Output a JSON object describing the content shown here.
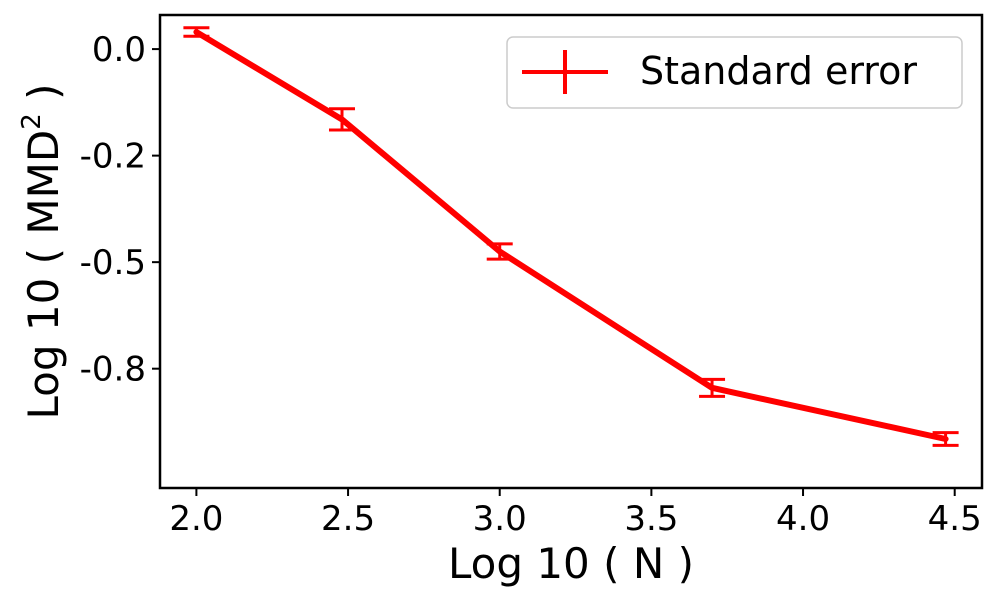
{
  "chart_data": {
    "type": "line",
    "title": "",
    "xlabel": "Log 10 ( N )",
    "ylabel_main": "Log 10 ( MMD",
    "ylabel_sup": "2",
    "ylabel_end": " )",
    "xlim": [
      1.88,
      4.59
    ],
    "ylim": [
      -1.03,
      0.08
    ],
    "x_ticks": [
      2.0,
      2.5,
      3.0,
      3.5,
      4.0,
      4.5
    ],
    "x_tick_labels": [
      "2.0",
      "2.5",
      "3.0",
      "3.5",
      "4.0",
      "4.5"
    ],
    "y_ticks": [
      0.0,
      -0.25,
      -0.5,
      -0.75
    ],
    "y_tick_labels": [
      "0.0",
      "-0.2",
      "-0.5",
      "-0.8"
    ],
    "grid": false,
    "legend_position": "top-right",
    "series": [
      {
        "name": "Standard error",
        "color": "#ff0000",
        "x": [
          2.0,
          2.48,
          3.0,
          3.7,
          4.47
        ],
        "y": [
          0.04,
          -0.165,
          -0.475,
          -0.795,
          -0.915
        ],
        "err": [
          0.01,
          0.025,
          0.018,
          0.02,
          0.015
        ]
      }
    ]
  }
}
